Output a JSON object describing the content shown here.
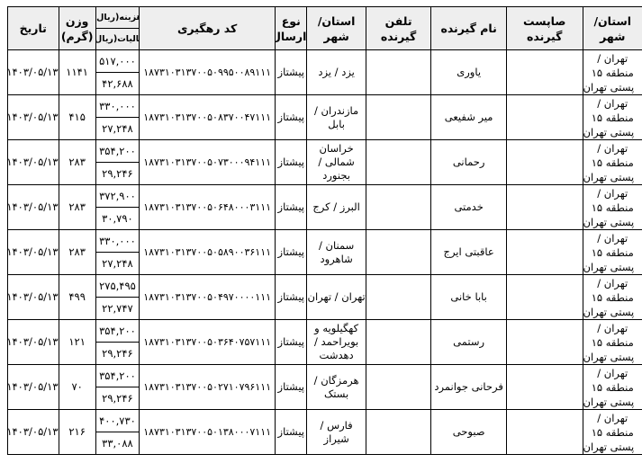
{
  "headers": {
    "sender_city": "استان/ شهر",
    "receiver_postcode": "صاپست گیرنده",
    "receiver_name": "نام گیرنده",
    "receiver_phone": "تلفن گیرنده",
    "receiver_city": "استان/ شهر",
    "send_type": "نوع ارسال",
    "tracking_code": "کد رهگیری",
    "cost": "هزینه(ریال)",
    "tax": "مالیات(ریال)",
    "weight": "وزن (گرم)",
    "date": "تاریخ"
  },
  "rows": [
    {
      "sender_1": "تهران /",
      "sender_2": "منطقه ۱۵",
      "sender_3": "پستی تهران",
      "postcode": "",
      "name": "یاوری",
      "phone": "",
      "city": "یزد / یزد",
      "type": "پیشتاز",
      "code": "۱۸۷۳۱۰۳۱۳۷۰۰۵۰۹۹۵۰۰۸۹۱۱۱",
      "cost": "۵۱۷,۰۰۰",
      "tax": "۴۲,۶۸۸",
      "weight": "۱۱۴۱",
      "date": "۱۴۰۳/۰۵/۱۳"
    },
    {
      "sender_1": "تهران /",
      "sender_2": "منطقه ۱۵",
      "sender_3": "پستی تهران",
      "postcode": "",
      "name": "میر شفیعی",
      "phone": "",
      "city": "مازندران / بابل",
      "type": "پیشتاز",
      "code": "۱۸۷۳۱۰۳۱۳۷۰۰۵۰۸۳۷۰۰۴۷۱۱۱",
      "cost": "۳۳۰,۰۰۰",
      "tax": "۲۷,۲۴۸",
      "weight": "۴۱۵",
      "date": "۱۴۰۳/۰۵/۱۳"
    },
    {
      "sender_1": "تهران /",
      "sender_2": "منطقه ۱۵",
      "sender_3": "پستی تهران",
      "postcode": "",
      "name": "رحمانی",
      "phone": "",
      "city": "خراسان شمالی / بجنورد",
      "type": "پیشتاز",
      "code": "۱۸۷۳۱۰۳۱۳۷۰۰۵۰۷۳۰۰۰۹۴۱۱۱",
      "cost": "۳۵۴,۲۰۰",
      "tax": "۲۹,۲۴۶",
      "weight": "۲۸۳",
      "date": "۱۴۰۳/۰۵/۱۳"
    },
    {
      "sender_1": "تهران /",
      "sender_2": "منطقه ۱۵",
      "sender_3": "پستی تهران",
      "postcode": "",
      "name": "خدمتی",
      "phone": "",
      "city": "البرز / کرج",
      "type": "پیشتاز",
      "code": "۱۸۷۳۱۰۳۱۳۷۰۰۵۰۶۴۸۰۰۰۳۱۱۱",
      "cost": "۳۷۲,۹۰۰",
      "tax": "۳۰,۷۹۰",
      "weight": "۲۸۳",
      "date": "۱۴۰۳/۰۵/۱۳"
    },
    {
      "sender_1": "تهران /",
      "sender_2": "منطقه ۱۵",
      "sender_3": "پستی تهران",
      "postcode": "",
      "name": "عاقبتی ایرج",
      "phone": "",
      "city": "سمنان / شاهرود",
      "type": "پیشتاز",
      "code": "۱۸۷۳۱۰۳۱۳۷۰۰۵۰۵۸۹۰۰۳۶۱۱۱",
      "cost": "۳۳۰,۰۰۰",
      "tax": "۲۷,۲۴۸",
      "weight": "۲۸۳",
      "date": "۱۴۰۳/۰۵/۱۳"
    },
    {
      "sender_1": "تهران /",
      "sender_2": "منطقه ۱۵",
      "sender_3": "پستی تهران",
      "postcode": "",
      "name": "بابا خانی",
      "phone": "",
      "city": "تهران / تهران",
      "type": "پیشتاز",
      "code": "۱۸۷۳۱۰۳۱۳۷۰۰۵۰۴۹۷۰۰۰۰۱۱۱",
      "cost": "۲۷۵,۴۹۵",
      "tax": "۲۲,۷۴۷",
      "weight": "۴۹۹",
      "date": "۱۴۰۳/۰۵/۱۳"
    },
    {
      "sender_1": "تهران /",
      "sender_2": "منطقه ۱۵",
      "sender_3": "پستی تهران",
      "postcode": "",
      "name": "رستمی",
      "phone": "",
      "city": "کهگیلویه و بویراحمد / دهدشت",
      "type": "پیشتاز",
      "code": "۱۸۷۳۱۰۳۱۳۷۰۰۵۰۳۶۴۰۷۵۷۱۱۱",
      "cost": "۳۵۴,۲۰۰",
      "tax": "۲۹,۲۴۶",
      "weight": "۱۲۱",
      "date": "۱۴۰۳/۰۵/۱۳"
    },
    {
      "sender_1": "تهران /",
      "sender_2": "منطقه ۱۵",
      "sender_3": "پستی تهران",
      "postcode": "",
      "name": "فرحانی جوانمرد",
      "phone": "",
      "city": "هرمزگان / بستک",
      "type": "پیشتاز",
      "code": "۱۸۷۳۱۰۳۱۳۷۰۰۵۰۲۷۱۰۷۹۶۱۱۱",
      "cost": "۳۵۴,۲۰۰",
      "tax": "۲۹,۲۴۶",
      "weight": "۷۰",
      "date": "۱۴۰۳/۰۵/۱۳"
    },
    {
      "sender_1": "تهران /",
      "sender_2": "منطقه ۱۵",
      "sender_3": "پستی تهران",
      "postcode": "",
      "name": "صبوحی",
      "phone": "",
      "city": "فارس / شیراز",
      "type": "پیشتاز",
      "code": "۱۸۷۳۱۰۳۱۳۷۰۰۵۰۱۳۸۰۰۰۷۱۱۱",
      "cost": "۴۰۰,۷۳۰",
      "tax": "۳۳,۰۸۸",
      "weight": "۲۱۶",
      "date": "۱۴۰۳/۰۵/۱۳"
    }
  ]
}
